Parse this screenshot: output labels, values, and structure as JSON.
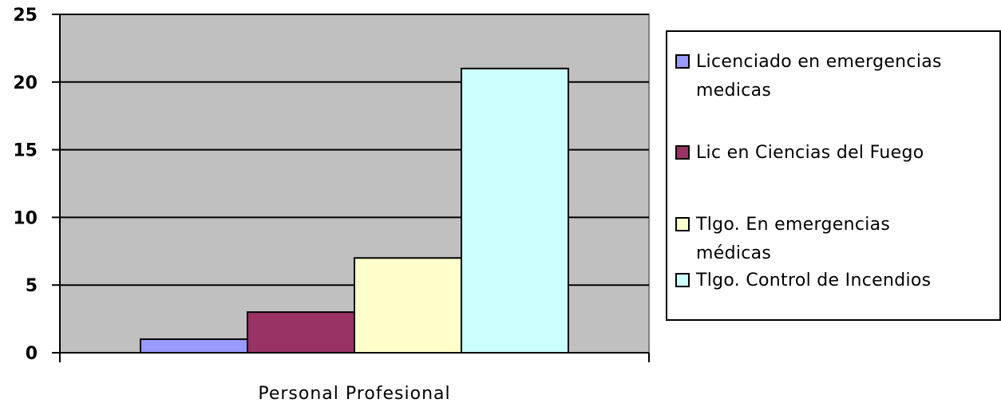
{
  "chart_data": {
    "type": "bar",
    "categories": [
      "Personal Profesional"
    ],
    "series": [
      {
        "name": "Licenciado en emergencias medicas",
        "values": [
          1
        ],
        "color": "#9999ff"
      },
      {
        "name": "Lic en Ciencias del Fuego",
        "values": [
          3
        ],
        "color": "#993366"
      },
      {
        "name": "Tlgo. En emergencias médicas",
        "values": [
          7
        ],
        "color": "#ffffcc"
      },
      {
        "name": "Tlgo. Control de Incendios",
        "values": [
          21
        ],
        "color": "#ccffff"
      }
    ],
    "ylim": [
      0,
      25
    ],
    "yticks": [
      0,
      5,
      10,
      15,
      20,
      25
    ],
    "grid": true,
    "plot_background": "#c0c0c0",
    "legend_position": "right"
  }
}
